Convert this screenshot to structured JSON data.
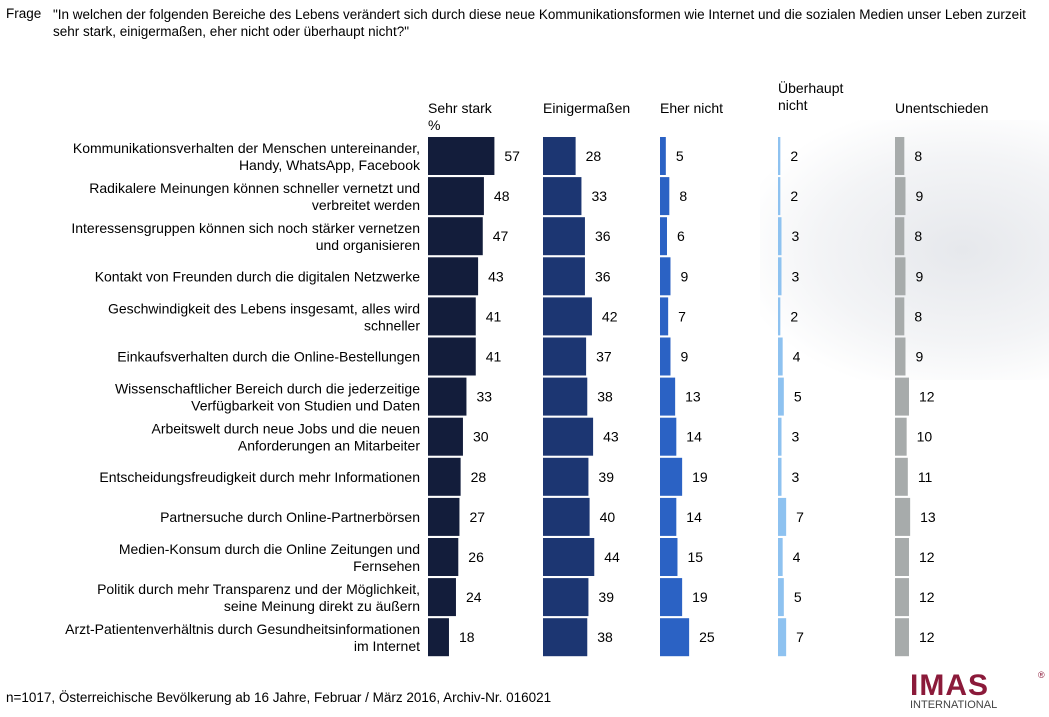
{
  "header": {
    "frage_label": "Frage",
    "question": "\"In welchen der folgenden Bereiche des Lebens verändert sich durch diese neue Kommunikationsformen wie Internet und die sozialen Medien unser Leben zurzeit sehr stark, einigermaßen, eher nicht oder überhaupt nicht?\""
  },
  "footer": "n=1017, Österreichische Bevölkerung ab 16 Jahre, Februar / März 2016, Archiv-Nr. 016021",
  "logo": {
    "name": "IMAS",
    "sub": "INTERNATIONAL",
    "reg": "®"
  },
  "chart_data": {
    "type": "bar",
    "orientation": "horizontal",
    "unit": "%",
    "categories": [
      [
        "Kommunikationsverhalten der Menschen untereinander,",
        "Handy, WhatsApp, Facebook"
      ],
      [
        "Radikalere Meinungen können schneller vernetzt und",
        "verbreitet werden"
      ],
      [
        "Interessensgruppen können sich noch stärker vernetzen",
        "und organisieren"
      ],
      [
        "Kontakt von Freunden durch die digitalen Netzwerke"
      ],
      [
        "Geschwindigkeit des Lebens insgesamt, alles wird",
        "schneller"
      ],
      [
        "Einkaufsverhalten durch die Online-Bestellungen"
      ],
      [
        "Wissenschaftlicher Bereich durch die jederzeitige",
        "Verfügbarkeit von Studien und Daten"
      ],
      [
        "Arbeitswelt durch neue Jobs und die neuen",
        "Anforderungen an Mitarbeiter"
      ],
      [
        "Entscheidungsfreudigkeit durch mehr Informationen"
      ],
      [
        "Partnersuche durch Online-Partnerbörsen"
      ],
      [
        "Medien-Konsum durch die Online Zeitungen und",
        "Fernsehen"
      ],
      [
        "Politik durch mehr Transparenz und der Möglichkeit,",
        "seine Meinung direkt zu äußern"
      ],
      [
        "Arzt-Patientenverhältnis durch Gesundheitsinformationen",
        "im Internet"
      ]
    ],
    "series": [
      {
        "name": "Sehr stark",
        "heading": [
          "Sehr stark",
          "%"
        ],
        "color": "#131d3b",
        "values": [
          57,
          48,
          47,
          43,
          41,
          41,
          33,
          30,
          28,
          27,
          26,
          24,
          18
        ]
      },
      {
        "name": "Einigermaßen",
        "heading": [
          "Einigermaßen"
        ],
        "color": "#1c3672",
        "values": [
          28,
          33,
          36,
          36,
          42,
          37,
          38,
          43,
          39,
          40,
          44,
          39,
          38
        ]
      },
      {
        "name": "Eher nicht",
        "heading": [
          "Eher nicht"
        ],
        "color": "#2b62c4",
        "values": [
          5,
          8,
          6,
          9,
          7,
          9,
          13,
          14,
          19,
          14,
          15,
          19,
          25
        ]
      },
      {
        "name": "Überhaupt nicht",
        "heading": [
          "Überhaupt",
          "nicht"
        ],
        "color": "#8ec2f0",
        "values": [
          2,
          2,
          3,
          3,
          2,
          4,
          5,
          3,
          3,
          7,
          4,
          5,
          7
        ]
      },
      {
        "name": "Unentschieden",
        "heading": [
          "Unentschieden"
        ],
        "color": "#a7abab",
        "values": [
          8,
          9,
          8,
          9,
          8,
          9,
          12,
          10,
          11,
          13,
          12,
          12,
          12
        ]
      }
    ]
  }
}
